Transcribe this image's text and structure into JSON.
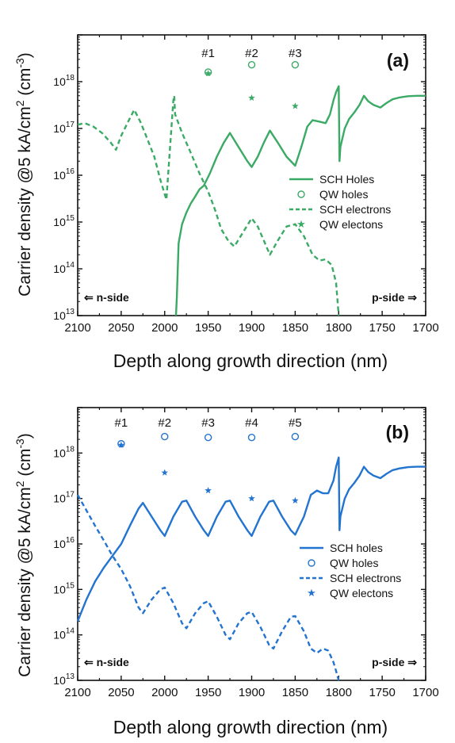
{
  "colors": {
    "panel_a": "#3aaa65",
    "panel_b": "#2374d0",
    "axis": "#111111"
  },
  "chart_data": [
    {
      "type": "line",
      "panel_label": "(a)",
      "ylabel": "Carrier density @5 kA/cm",
      "ylabel_sup1": "2",
      "ylabel_unit": " (cm",
      "ylabel_sup2": "-3",
      "ylabel_end": ")",
      "xlabel": "Depth along growth direction (nm)",
      "xlim": [
        2100,
        1700
      ],
      "x_reversed": true,
      "ylim": [
        10000000000000.0,
        1e+19
      ],
      "y_scale": "log",
      "x_ticks": [
        "2100",
        "2050",
        "2000",
        "1950",
        "1900",
        "1850",
        "1800",
        "1750",
        "1700"
      ],
      "y_ticks": [
        {
          "base": "10",
          "exp": "13"
        },
        {
          "base": "10",
          "exp": "14"
        },
        {
          "base": "10",
          "exp": "15"
        },
        {
          "base": "10",
          "exp": "16"
        },
        {
          "base": "10",
          "exp": "17"
        },
        {
          "base": "10",
          "exp": "18"
        }
      ],
      "side_left": "⇐ n-side",
      "side_right": "p-side ⇒",
      "legend_position": "center-right",
      "qw_labels": [
        {
          "text": "#1",
          "x": 1950
        },
        {
          "text": "#2",
          "x": 1900
        },
        {
          "text": "#3",
          "x": 1850
        }
      ],
      "series": [
        {
          "name": "SCH Holes",
          "style": "solid",
          "x": [
            1987,
            1986,
            1984,
            1980,
            1975,
            1970,
            1965,
            1960,
            1955,
            1948,
            1940,
            1932,
            1925,
            1915,
            1905,
            1900,
            1893,
            1886,
            1879,
            1870,
            1860,
            1850,
            1843,
            1836,
            1830,
            1822,
            1815,
            1810,
            1806,
            1803,
            1800,
            1799,
            1798,
            1793,
            1788,
            1782,
            1776,
            1771,
            1766,
            1760,
            1752,
            1745,
            1738,
            1730,
            1720,
            1710,
            1700
          ],
          "y": [
            10000000000000.0,
            25000000000000.0,
            350000000000000.0,
            900000000000000.0,
            1600000000000000.0,
            2500000000000000.0,
            3500000000000000.0,
            5000000000000000.0,
            6000000000000000.0,
            1.1e+16,
            2.5e+16,
            5e+16,
            8e+16,
            4e+16,
            2e+16,
            1.5e+16,
            2.5e+16,
            5e+16,
            9e+16,
            5e+16,
            2.5e+16,
            1.6e+16,
            4e+16,
            1.1e+17,
            1.5e+17,
            1.4e+17,
            1.3e+17,
            2e+17,
            4e+17,
            6e+17,
            8e+17,
            2e+16,
            4e+16,
            1e+17,
            1.6e+17,
            2.2e+17,
            3.2e+17,
            5e+17,
            3.8e+17,
            3.2e+17,
            2.8e+17,
            3.5e+17,
            4.2e+17,
            4.6e+17,
            4.9e+17,
            5e+17,
            5e+17
          ]
        },
        {
          "name": "QW holes",
          "style": "circle",
          "x": [
            1950,
            1900,
            1850
          ],
          "y": [
            1.6e+18,
            2.3e+18,
            2.3e+18
          ]
        },
        {
          "name": "SCH electrons",
          "style": "dash",
          "x": [
            2100,
            2092,
            2082,
            2072,
            2062,
            2056,
            2050,
            2042,
            2035,
            2028,
            2020,
            2012,
            2005,
            1998,
            1990,
            1989,
            1988,
            1980,
            1970,
            1960,
            1950,
            1942,
            1935,
            1927,
            1920,
            1910,
            1900,
            1893,
            1886,
            1879,
            1870,
            1860,
            1850,
            1840,
            1830,
            1822,
            1815,
            1808,
            1803,
            1800
          ],
          "y": [
            1.2e+17,
            1.3e+17,
            1.1e+17,
            8e+16,
            5e+16,
            3.5e+16,
            7e+16,
            1.4e+17,
            2.5e+17,
            1.4e+17,
            6e+16,
            2.5e+16,
            8000000000000000.0,
            3000000000000000.0,
            4e+17,
            5e+17,
            2e+17,
            8e+16,
            3e+16,
            1.1e+16,
            4500000000000000.0,
            1800000000000000.0,
            700000000000000.0,
            400000000000000.0,
            300000000000000.0,
            600000000000000.0,
            1200000000000000.0,
            800000000000000.0,
            400000000000000.0,
            200000000000000.0,
            400000000000000.0,
            800000000000000.0,
            900000000000000.0,
            500000000000000.0,
            200000000000000.0,
            150000000000000.0,
            160000000000000.0,
            120000000000000.0,
            50000000000000.0,
            10000000000000.0
          ]
        },
        {
          "name": "QW electons",
          "style": "star",
          "x": [
            1950,
            1900,
            1850
          ],
          "y": [
            1.5e+18,
            4.5e+17,
            3e+17
          ]
        }
      ]
    },
    {
      "type": "line",
      "panel_label": "(b)",
      "ylabel": "Carrier density @5 kA/cm",
      "ylabel_sup1": "2",
      "ylabel_unit": " (cm",
      "ylabel_sup2": "-3",
      "ylabel_end": ")",
      "xlabel": "Depth along growth direction (nm)",
      "xlim": [
        2100,
        1700
      ],
      "x_reversed": true,
      "ylim": [
        10000000000000.0,
        1e+19
      ],
      "y_scale": "log",
      "x_ticks": [
        "2100",
        "2050",
        "2000",
        "1950",
        "1900",
        "1850",
        "1800",
        "1750",
        "1700"
      ],
      "y_ticks": [
        {
          "base": "10",
          "exp": "13"
        },
        {
          "base": "10",
          "exp": "14"
        },
        {
          "base": "10",
          "exp": "15"
        },
        {
          "base": "10",
          "exp": "16"
        },
        {
          "base": "10",
          "exp": "17"
        },
        {
          "base": "10",
          "exp": "18"
        }
      ],
      "side_left": "⇐ n-side",
      "side_right": "p-side ⇒",
      "legend_position": "center-right",
      "qw_labels": [
        {
          "text": "#1",
          "x": 2050
        },
        {
          "text": "#2",
          "x": 2000
        },
        {
          "text": "#3",
          "x": 1950
        },
        {
          "text": "#4",
          "x": 1900
        },
        {
          "text": "#5",
          "x": 1850
        }
      ],
      "series": [
        {
          "name": "SCH holes",
          "style": "solid",
          "x": [
            2100,
            2090,
            2080,
            2070,
            2060,
            2050,
            2040,
            2030,
            2025,
            2015,
            2005,
            2000,
            1990,
            1980,
            1975,
            1965,
            1955,
            1950,
            1940,
            1930,
            1925,
            1915,
            1905,
            1900,
            1890,
            1880,
            1875,
            1865,
            1855,
            1850,
            1840,
            1832,
            1825,
            1818,
            1812,
            1806,
            1803,
            1800,
            1799,
            1798,
            1793,
            1788,
            1782,
            1776,
            1771,
            1766,
            1760,
            1752,
            1745,
            1738,
            1730,
            1720,
            1710,
            1700
          ],
          "y": [
            200000000000000.0,
            600000000000000.0,
            1500000000000000.0,
            3000000000000000.0,
            5500000000000000.0,
            1e+16,
            2.5e+16,
            6e+16,
            8e+16,
            4e+16,
            2e+16,
            1.5e+16,
            4e+16,
            8.5e+16,
            9e+16,
            4e+16,
            2e+16,
            1.5e+16,
            4e+16,
            8.5e+16,
            9e+16,
            4e+16,
            2e+16,
            1.5e+16,
            4e+16,
            8.5e+16,
            9e+16,
            4e+16,
            2e+16,
            1.6e+16,
            4e+16,
            1.2e+17,
            1.5e+17,
            1.3e+17,
            1.3e+17,
            2.5e+17,
            5e+17,
            8e+17,
            2e+16,
            4e+16,
            1e+17,
            1.6e+17,
            2.2e+17,
            3.2e+17,
            5e+17,
            3.8e+17,
            3.2e+17,
            2.8e+17,
            3.5e+17,
            4.2e+17,
            4.6e+17,
            4.9e+17,
            5e+17,
            5e+17
          ]
        },
        {
          "name": "QW holes",
          "style": "circle",
          "x": [
            2050,
            2000,
            1950,
            1900,
            1850
          ],
          "y": [
            1.6e+18,
            2.3e+18,
            2.2e+18,
            2.2e+18,
            2.3e+18
          ]
        },
        {
          "name": "SCH electrons",
          "style": "dash",
          "x": [
            2100,
            2090,
            2080,
            2070,
            2060,
            2050,
            2040,
            2030,
            2025,
            2015,
            2005,
            2000,
            1990,
            1980,
            1975,
            1965,
            1955,
            1950,
            1940,
            1930,
            1925,
            1915,
            1905,
            1900,
            1890,
            1880,
            1875,
            1865,
            1855,
            1850,
            1840,
            1832,
            1825,
            1818,
            1812,
            1806,
            1803,
            1800
          ],
          "y": [
            1.2e+17,
            5.5e+16,
            2.5e+16,
            1.2e+16,
            5500000000000000.0,
            2800000000000000.0,
            1200000000000000.0,
            400000000000000.0,
            300000000000000.0,
            600000000000000.0,
            1000000000000000.0,
            1100000000000000.0,
            500000000000000.0,
            180000000000000.0,
            140000000000000.0,
            300000000000000.0,
            500000000000000.0,
            550000000000000.0,
            250000000000000.0,
            100000000000000.0,
            80000000000000.0,
            180000000000000.0,
            300000000000000.0,
            320000000000000.0,
            150000000000000.0,
            60000000000000.0,
            50000000000000.0,
            120000000000000.0,
            250000000000000.0,
            260000000000000.0,
            120000000000000.0,
            50000000000000.0,
            40000000000000.0,
            50000000000000.0,
            45000000000000.0,
            25000000000000.0,
            16000000000000.0,
            10000000000000.0
          ]
        },
        {
          "name": "QW electons",
          "style": "star",
          "x": [
            2050,
            2000,
            1950,
            1900,
            1850
          ],
          "y": [
            1.5e+18,
            3.7e+17,
            1.5e+17,
            1e+17,
            9e+16
          ]
        }
      ]
    }
  ]
}
